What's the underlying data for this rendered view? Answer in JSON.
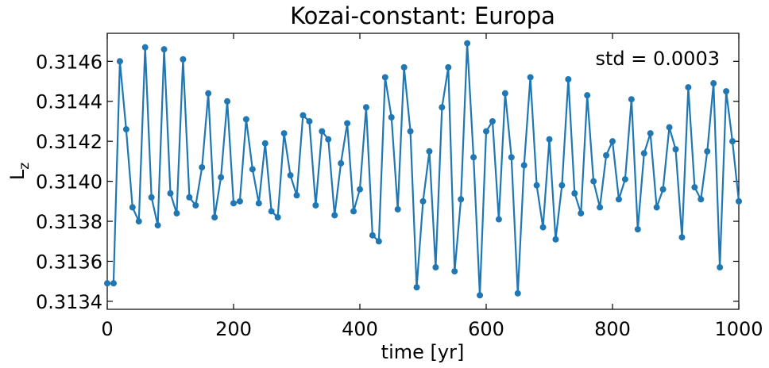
{
  "chart_data": {
    "type": "line",
    "title": "Kozai-constant: Europa",
    "xlabel": "time [yr]",
    "ylabel_main": "L",
    "ylabel_sub": "z",
    "annotation": "std = 0.0003",
    "xlim": [
      0,
      1000
    ],
    "ylim": [
      0.31336,
      0.31474
    ],
    "xticks": [
      0,
      200,
      400,
      600,
      800,
      1000
    ],
    "xtick_labels": [
      "0",
      "200",
      "400",
      "600",
      "800",
      "1000"
    ],
    "yticks": [
      0.3134,
      0.3136,
      0.3138,
      0.314,
      0.3142,
      0.3144,
      0.3146
    ],
    "ytick_labels": [
      "0.3134",
      "0.3136",
      "0.3138",
      "0.3140",
      "0.3142",
      "0.3144",
      "0.3146"
    ],
    "grid": false,
    "color": "#1f77b4",
    "series": [
      {
        "x": [
          0,
          10,
          20,
          30,
          40,
          50,
          60,
          70,
          80,
          90,
          100,
          110,
          120,
          130,
          140,
          150,
          160,
          170,
          180,
          190,
          200,
          210,
          220,
          230,
          240,
          250,
          260,
          270,
          280,
          290,
          300,
          310,
          320,
          330,
          340,
          350,
          360,
          370,
          380,
          390,
          400,
          410,
          420,
          430,
          440,
          450,
          460,
          470,
          480,
          490,
          500,
          510,
          520,
          530,
          540,
          550,
          560,
          570,
          580,
          590,
          600,
          610,
          620,
          630,
          640,
          650,
          660,
          670,
          680,
          690,
          700,
          710,
          720,
          730,
          740,
          750,
          760,
          770,
          780,
          790,
          800,
          810,
          820,
          830,
          840,
          850,
          860,
          870,
          880,
          890,
          900,
          910,
          920,
          930,
          940,
          950,
          960,
          970,
          980,
          990,
          1000
        ],
        "y": [
          0.31349,
          0.31349,
          0.3146,
          0.31426,
          0.31387,
          0.3138,
          0.31467,
          0.31392,
          0.31378,
          0.31466,
          0.31394,
          0.31384,
          0.31461,
          0.31392,
          0.31388,
          0.31407,
          0.31444,
          0.31382,
          0.31402,
          0.3144,
          0.31389,
          0.3139,
          0.31431,
          0.31406,
          0.31389,
          0.31419,
          0.31385,
          0.31382,
          0.31424,
          0.31403,
          0.31393,
          0.31433,
          0.3143,
          0.31388,
          0.31425,
          0.31421,
          0.31383,
          0.31409,
          0.31429,
          0.31385,
          0.31396,
          0.31437,
          0.31373,
          0.3137,
          0.31452,
          0.31432,
          0.31386,
          0.31457,
          0.31425,
          0.31347,
          0.3139,
          0.31415,
          0.31357,
          0.31437,
          0.31457,
          0.31355,
          0.31391,
          0.31469,
          0.31412,
          0.31343,
          0.31425,
          0.3143,
          0.31381,
          0.31444,
          0.31412,
          0.31344,
          0.31408,
          0.31452,
          0.31398,
          0.31377,
          0.31421,
          0.31371,
          0.31398,
          0.31451,
          0.31394,
          0.31384,
          0.31443,
          0.314,
          0.31387,
          0.31413,
          0.3142,
          0.31391,
          0.31401,
          0.31441,
          0.31376,
          0.31414,
          0.31424,
          0.31387,
          0.31396,
          0.31427,
          0.31416,
          0.31372,
          0.31447,
          0.31397,
          0.31391,
          0.31415,
          0.31449,
          0.31357,
          0.31445,
          0.3142,
          0.3139
        ]
      }
    ]
  }
}
